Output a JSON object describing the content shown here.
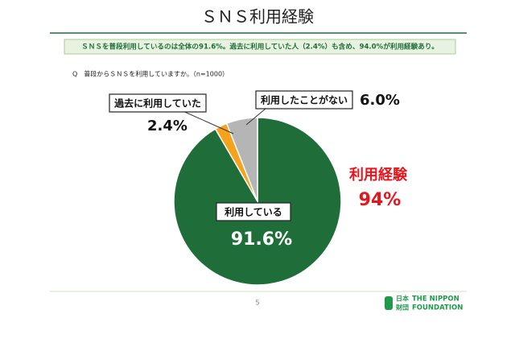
{
  "chart_data": {
    "type": "pie",
    "title": "ＳＮＳ利用経験",
    "subtitle": "ＳＮＳを普段利用しているのは全体の91.6%。過去に利用していた人（2.4%）も含め、94.0%が利用経験あり。",
    "question": "Q　普段からＳＮＳを利用していますか。（n=1000）",
    "categories": [
      "利用している",
      "過去に利用していた",
      "利用したことがない"
    ],
    "values": [
      91.6,
      2.4,
      6.0
    ],
    "value_labels": [
      "91.6%",
      "2.4%",
      "6.0%"
    ],
    "colors": [
      "#1f6e3a",
      "#f5a21c",
      "#b5b5b5"
    ],
    "highlight": {
      "label": "利用経験",
      "value": 94,
      "value_label": "94%"
    }
  },
  "footer": {
    "page": 5,
    "logo_kanji": [
      "日本",
      "財団"
    ],
    "logo_text": [
      "THE NIPPON",
      "FOUNDATION"
    ]
  }
}
